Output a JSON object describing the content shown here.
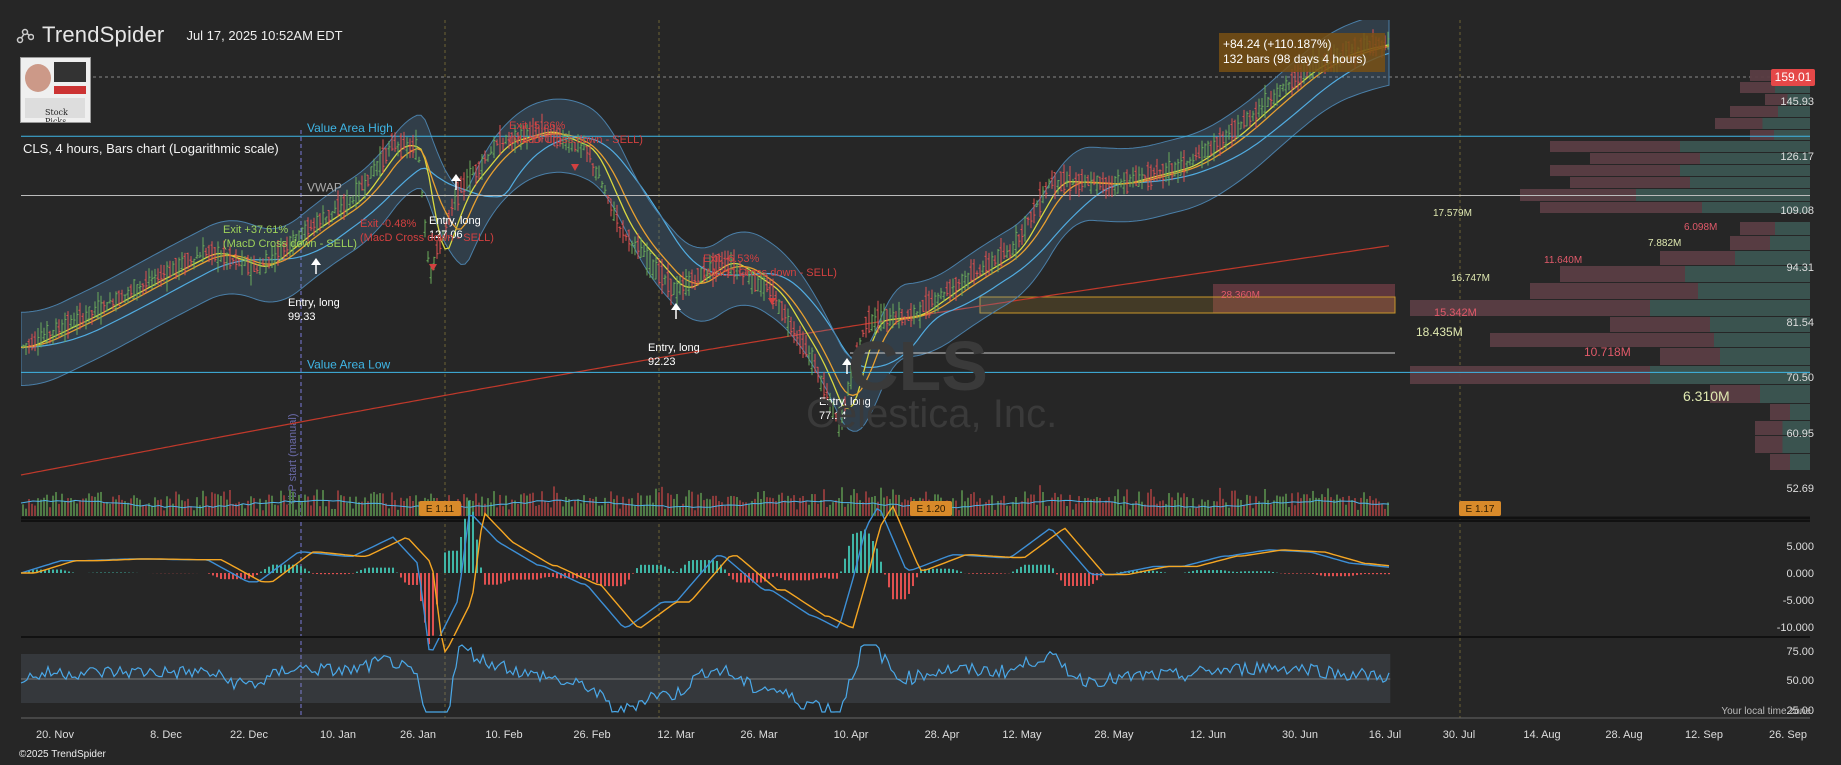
{
  "header": {
    "brand": "TrendSpider",
    "timestamp": "Jul 17, 2025 10:52AM EDT"
  },
  "thumbnail": {
    "caption": "Stock Picks"
  },
  "chart_title": "CLS, 4 hours, Bars chart (Logarithmic scale)",
  "watermark": {
    "ticker": "CLS",
    "company": "Celestica, Inc."
  },
  "footer": {
    "copyright": "©2025 TrendSpider",
    "timezone": "Your local time zone"
  },
  "last_price": "159.01",
  "measure": {
    "line1": "+84.24 (+110.187%)",
    "line2": "132 bars (98 days 4 hours)"
  },
  "colors": {
    "background": "#262626",
    "up": "#6aab5a",
    "down": "#e05050",
    "blue": "#4fb3e8",
    "macd": "#3d8fd6",
    "signal": "#f5a623",
    "sma_red": "#c0392b"
  },
  "chart_data": {
    "type": "bar",
    "scale": "log",
    "x_ticks": [
      "20. Nov",
      "8. Dec",
      "22. Dec",
      "10. Jan",
      "26. Jan",
      "10. Feb",
      "26. Feb",
      "12. Mar",
      "26. Mar",
      "10. Apr",
      "28. Apr",
      "12. May",
      "28. May",
      "12. Jun",
      "30. Jun",
      "16. Jul",
      "30. Jul",
      "14. Aug",
      "28. Aug",
      "12. Sep",
      "26. Sep"
    ],
    "y_ticks": [
      "145.93",
      "126.17",
      "109.08",
      "94.31",
      "81.54",
      "70.50",
      "60.95",
      "52.69"
    ],
    "ylim": [
      49,
      168
    ],
    "close_path": [
      {
        "d": "2024-11-15",
        "v": 75
      },
      {
        "d": "2024-11-25",
        "v": 81
      },
      {
        "d": "2024-12-05",
        "v": 88
      },
      {
        "d": "2024-12-15",
        "v": 95
      },
      {
        "d": "2024-12-24",
        "v": 91
      },
      {
        "d": "2025-01-03",
        "v": 100
      },
      {
        "d": "2025-01-13",
        "v": 108
      },
      {
        "d": "2025-01-21",
        "v": 124
      },
      {
        "d": "2025-01-26",
        "v": 122
      },
      {
        "d": "2025-01-28",
        "v": 90
      },
      {
        "d": "2025-02-02",
        "v": 110
      },
      {
        "d": "2025-02-09",
        "v": 124
      },
      {
        "d": "2025-02-17",
        "v": 128
      },
      {
        "d": "2025-02-25",
        "v": 122
      },
      {
        "d": "2025-03-03",
        "v": 100
      },
      {
        "d": "2025-03-12",
        "v": 86
      },
      {
        "d": "2025-03-20",
        "v": 93
      },
      {
        "d": "2025-03-28",
        "v": 86
      },
      {
        "d": "2025-04-04",
        "v": 72
      },
      {
        "d": "2025-04-08",
        "v": 62
      },
      {
        "d": "2025-04-13",
        "v": 80
      },
      {
        "d": "2025-04-22",
        "v": 81
      },
      {
        "d": "2025-05-01",
        "v": 88
      },
      {
        "d": "2025-05-10",
        "v": 95
      },
      {
        "d": "2025-05-17",
        "v": 113
      },
      {
        "d": "2025-05-28",
        "v": 112
      },
      {
        "d": "2025-06-08",
        "v": 117
      },
      {
        "d": "2025-06-16",
        "v": 126
      },
      {
        "d": "2025-06-24",
        "v": 138
      },
      {
        "d": "2025-07-02",
        "v": 150
      },
      {
        "d": "2025-07-10",
        "v": 156
      },
      {
        "d": "2025-07-17",
        "v": 159
      }
    ],
    "levels": [
      {
        "name": "Value Area High",
        "value": 126.17
      },
      {
        "name": "VWAP",
        "value": 109
      },
      {
        "name": "Value Area Low",
        "value": 70.5
      }
    ],
    "trades": [
      {
        "label1": "Entry, long",
        "label2": "99.33",
        "date": "2025-01-03",
        "price": 99.33,
        "side": "entry"
      },
      {
        "label1": "Exit +37.61%",
        "label2": "(MacD Cross down - SELL)",
        "date": "2025-01-03",
        "price": 118,
        "side": "exit-win"
      },
      {
        "label1": "Entry, long",
        "label2": "127.06",
        "date": "2025-01-29",
        "price": 127.06,
        "side": "entry"
      },
      {
        "label1": "Exit -0.48%",
        "label2": "(MacD Cross down - SELL)",
        "date": "2025-02-02",
        "price": 112,
        "side": "exit-loss"
      },
      {
        "label1": "Exit -5.36%",
        "label2": "(MacD Cross down - SELL)",
        "date": "2025-02-26",
        "price": 135,
        "side": "exit-loss"
      },
      {
        "label1": "Entry, long",
        "label2": "92.23",
        "date": "2025-03-14",
        "price": 92.23,
        "side": "entry"
      },
      {
        "label1": "Exit -6.53%",
        "label2": "(MacD Cross down - SELL)",
        "date": "2025-03-29",
        "price": 93,
        "side": "exit-loss"
      },
      {
        "label1": "Entry, long",
        "label2": "77.14",
        "date": "2025-04-10",
        "price": 77.14,
        "side": "entry"
      }
    ],
    "volume_profile": [
      {
        "label": "17.579M",
        "value": 17.579
      },
      {
        "label": "6.098M",
        "value": 6.098
      },
      {
        "label": "7.882M",
        "value": 7.882
      },
      {
        "label": "11.640M",
        "value": 11.64
      },
      {
        "label": "16.747M",
        "value": 16.747
      },
      {
        "label": "28.360M",
        "value": 28.36
      },
      {
        "label": "15.342M",
        "value": 15.342
      },
      {
        "label": "18.435M",
        "value": 18.435
      },
      {
        "label": "10.718M",
        "value": 10.718
      },
      {
        "label": "6.310M",
        "value": 6.31
      }
    ],
    "earnings": [
      "E 1.11",
      "E 1.20",
      "E 1.17"
    ],
    "vline_label": "VbP start (manual)",
    "macd_ticks": [
      "5.000",
      "0.000",
      "-5.000",
      "-10.000"
    ],
    "rsi_ticks": [
      "75.00",
      "50.00",
      "25.00"
    ]
  }
}
